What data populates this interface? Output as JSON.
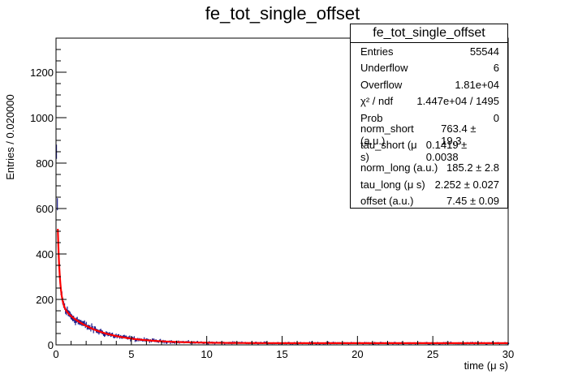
{
  "chart_data": {
    "type": "line",
    "title": "fe_tot_single_offset",
    "xlabel": "time (μ s)",
    "ylabel": "Entries / 0.020000",
    "xlim": [
      0,
      30
    ],
    "ylim": [
      0,
      1350
    ],
    "x_ticks": [
      "0",
      "5",
      "10",
      "15",
      "20",
      "25",
      "30"
    ],
    "y_ticks": [
      "0",
      "200",
      "400",
      "600",
      "800",
      "1000",
      "1200"
    ],
    "grid": false,
    "histogram_color": "#1c1c8c",
    "fit_color": "#ff0000",
    "fit": {
      "function": "norm_short*exp(-t/tau_short) + norm_long*exp(-t/tau_long) + offset",
      "norm_short": 763.4,
      "tau_short": 0.1419,
      "norm_long": 185.2,
      "tau_long": 2.252,
      "offset": 7.45
    },
    "histogram_peak": {
      "x": 0.03,
      "y": 850
    }
  },
  "stats_box": {
    "title": "fe_tot_single_offset",
    "rows": [
      {
        "label": "Entries",
        "value": "55544"
      },
      {
        "label": "Underflow",
        "value": "6"
      },
      {
        "label": "Overflow",
        "value": "1.81e+04"
      },
      {
        "label": "χ² / ndf",
        "value": "1.447e+04 / 1495"
      },
      {
        "label": "Prob",
        "value": "0"
      },
      {
        "label": "norm_short (a.u.)",
        "value": "763.4 ± 19.3"
      },
      {
        "label": "tau_short (μ s)",
        "value": "0.1419 ± 0.0038"
      },
      {
        "label": "norm_long (a.u.)",
        "value": "185.2 ± 2.8"
      },
      {
        "label": "tau_long (μ s)",
        "value": "2.252 ± 0.027"
      },
      {
        "label": "offset (a.u.)",
        "value": "7.45 ± 0.09"
      }
    ]
  }
}
